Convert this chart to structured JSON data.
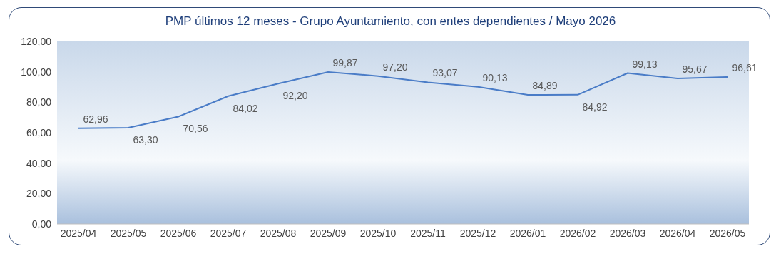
{
  "chart_data": {
    "type": "line",
    "title": "PMP últimos 12 meses - Grupo Ayuntamiento, con entes dependientes / Mayo 2026",
    "categories": [
      "2025/04",
      "2025/05",
      "2025/06",
      "2025/07",
      "2025/08",
      "2025/09",
      "2025/10",
      "2025/11",
      "2025/12",
      "2026/01",
      "2026/02",
      "2026/03",
      "2026/04",
      "2026/05"
    ],
    "series": [
      {
        "color": "#4a7cc7",
        "values": [
          62.96,
          63.3,
          70.56,
          84.02,
          92.2,
          99.87,
          97.2,
          93.07,
          90.13,
          84.89,
          84.92,
          99.13,
          95.67,
          96.61
        ],
        "value_labels": [
          "62,96",
          "63,30",
          "70,56",
          "84,02",
          "92,20",
          "99,87",
          "97,20",
          "93,07",
          "90,13",
          "84,89",
          "84,92",
          "99,13",
          "95,67",
          "96,61"
        ]
      }
    ],
    "ylim": [
      0,
      120
    ],
    "yticks": [
      {
        "value": 0,
        "label": "0,00"
      },
      {
        "value": 20,
        "label": "20,00"
      },
      {
        "value": 40,
        "label": "40,00"
      },
      {
        "value": 60,
        "label": "60,00"
      },
      {
        "value": 80,
        "label": "80,00"
      },
      {
        "value": 100,
        "label": "100,00"
      },
      {
        "value": 120,
        "label": "120,00"
      }
    ],
    "grid": false,
    "legend": false,
    "marker": "none",
    "line_style": "solid"
  }
}
